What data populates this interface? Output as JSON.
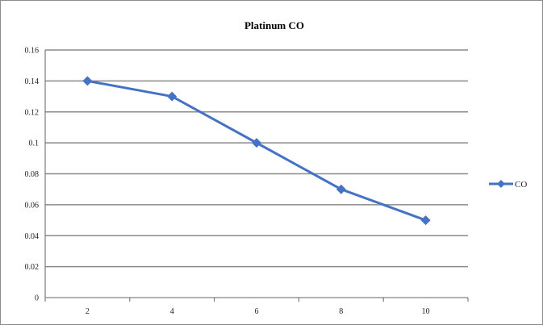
{
  "chart_data": {
    "type": "line",
    "title": "Platinum CO",
    "categories": [
      "2",
      "4",
      "6",
      "8",
      "10"
    ],
    "series": [
      {
        "name": "CO",
        "values": [
          0.14,
          0.13,
          0.1,
          0.07,
          0.05
        ],
        "color": "#4472C4",
        "marker": "diamond"
      }
    ],
    "y_ticks": [
      "0",
      "0.02",
      "0.04",
      "0.06",
      "0.08",
      "0.1",
      "0.12",
      "0.14",
      "0.16"
    ],
    "ylim": [
      0,
      0.16
    ],
    "grid": true,
    "legend": "right"
  }
}
